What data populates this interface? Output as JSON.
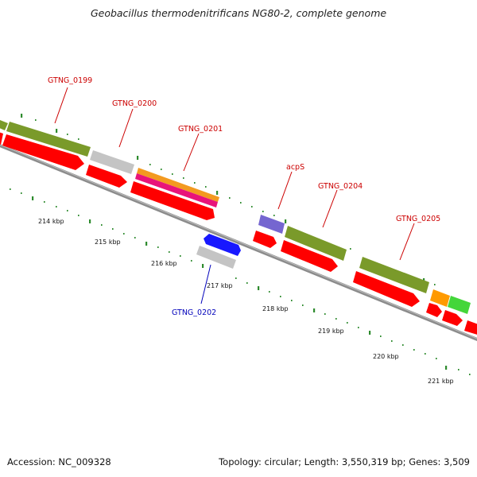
{
  "header": {
    "title": "Geobacillus thermodenitrificans NG80-2, complete genome"
  },
  "footer": {
    "accession": "Accession: NC_009328",
    "stats": "Topology: circular; Length: 3,550,319 bp; Genes: 3,509"
  },
  "scale_labels": [
    "214 kbp",
    "215 kbp",
    "216 kbp",
    "217 kbp",
    "218 kbp",
    "219 kbp",
    "220 kbp",
    "221 kbp"
  ],
  "gene_labels": [
    {
      "text": "GTNG_0199",
      "color": "#cc0000"
    },
    {
      "text": "GTNG_0200",
      "color": "#cc0000"
    },
    {
      "text": "GTNG_0201",
      "color": "#cc0000"
    },
    {
      "text": "acpS",
      "color": "#cc0000"
    },
    {
      "text": "GTNG_0204",
      "color": "#cc0000"
    },
    {
      "text": "GTNG_0205",
      "color": "#cc0000"
    },
    {
      "text": "GTNG_0202",
      "color": "#0000bb"
    }
  ],
  "colors": {
    "cds": "#ff0000",
    "backbone": "#8c8c8c",
    "tick": "#2e8b2e",
    "olive": "#7a9a2a",
    "grey_feature": "#c4c4c4",
    "purple": "#7566d0",
    "blue": "#1818ff",
    "orange": "#ff9a00",
    "green": "#44d63a",
    "magenta": "#e8147a"
  }
}
